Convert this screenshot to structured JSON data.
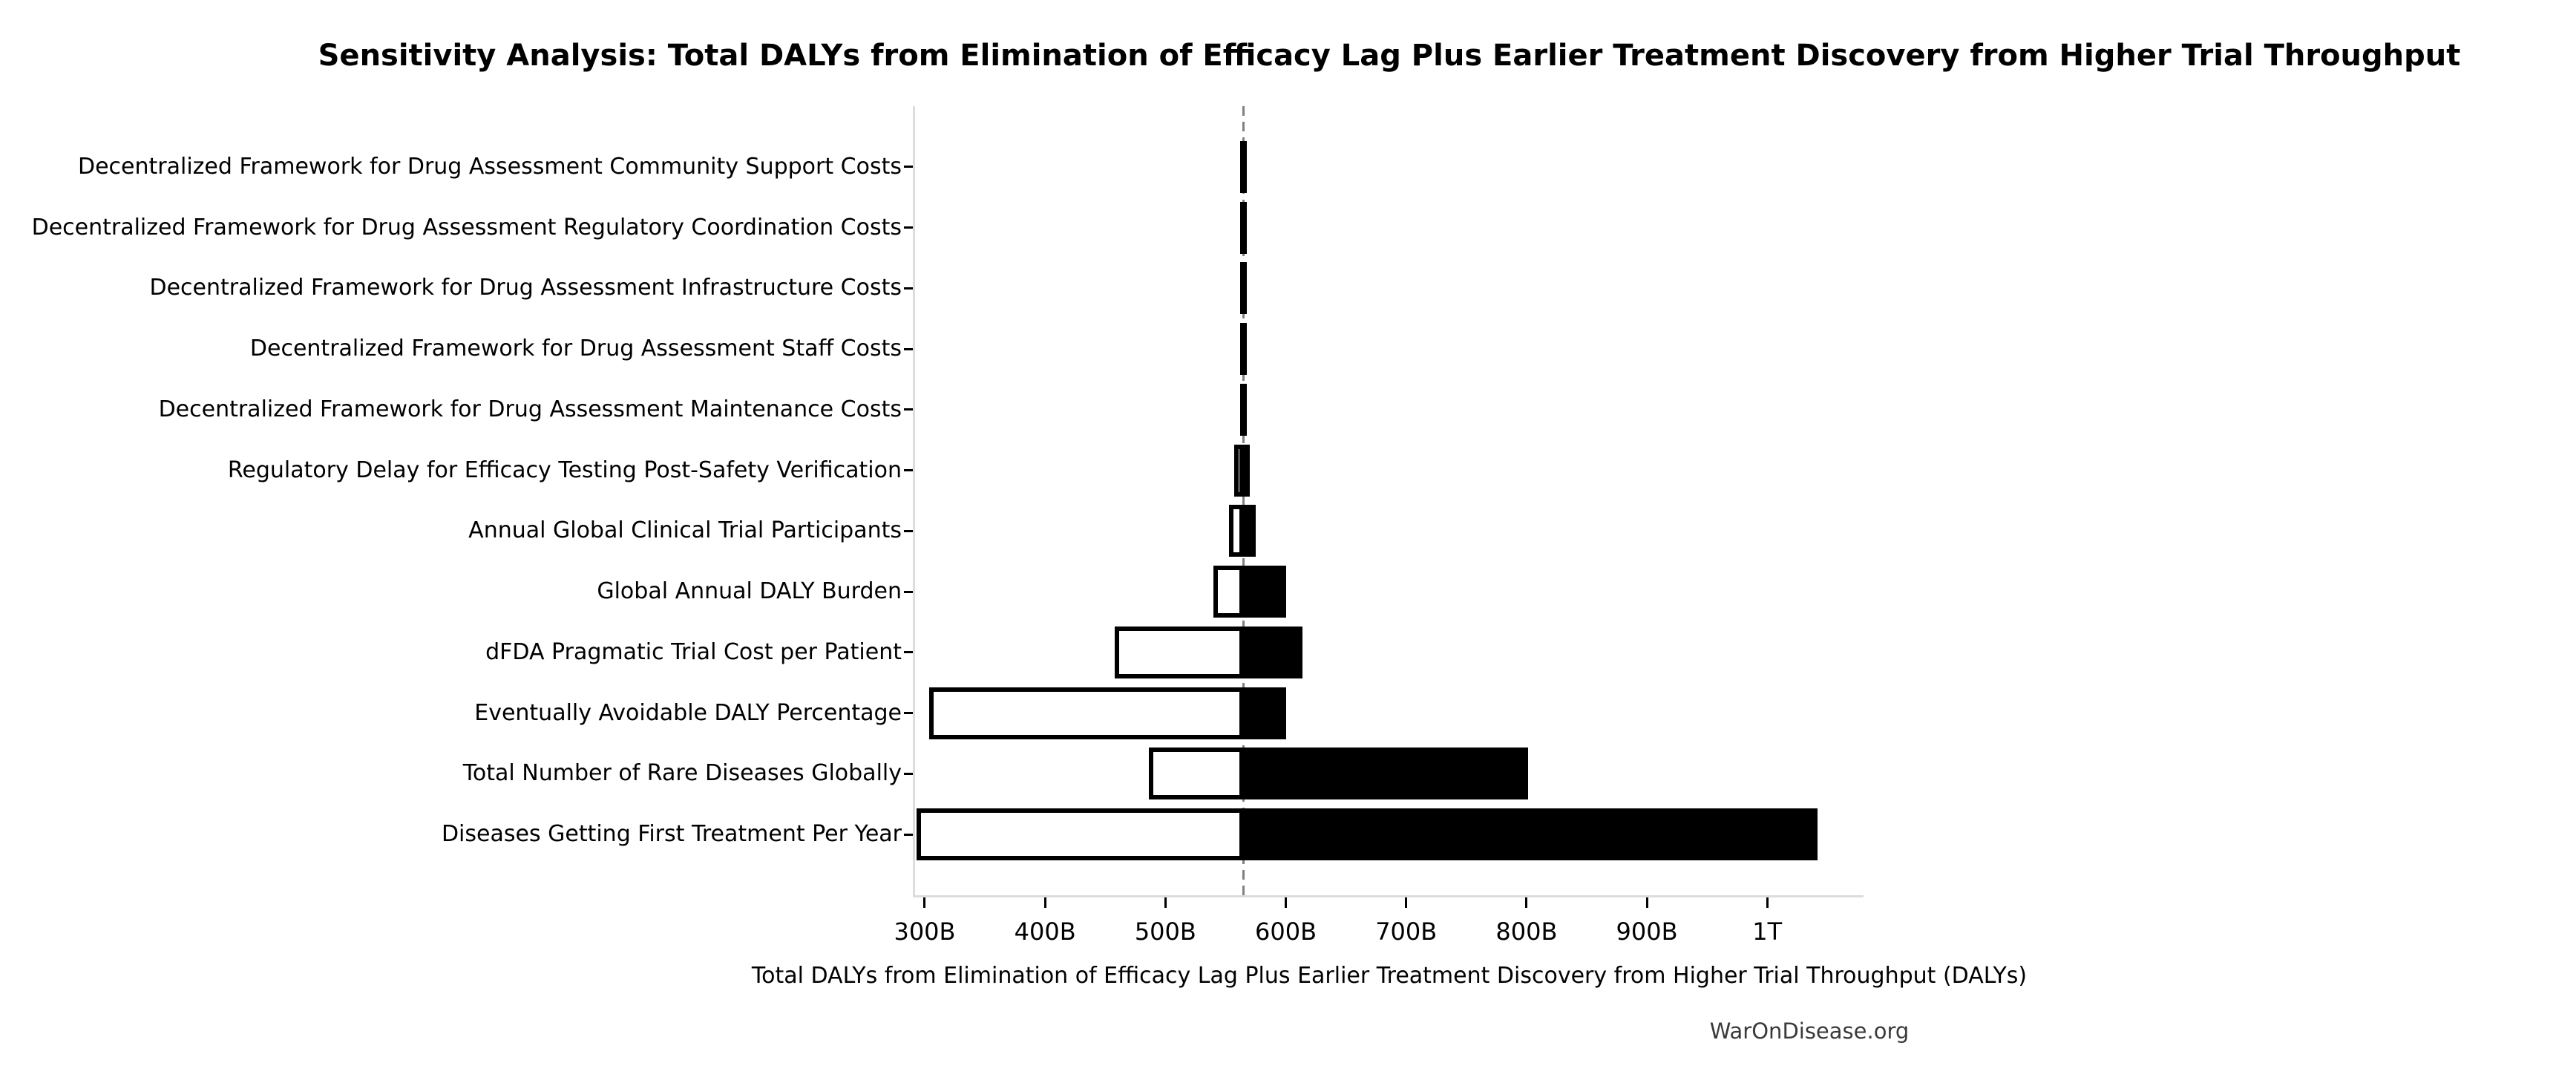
{
  "title": "Sensitivity Analysis: Total DALYs from Elimination of Efficacy Lag Plus Earlier Treatment Discovery from Higher Trial Throughput",
  "footer": "WarOnDisease.org",
  "chart_data": {
    "type": "bar",
    "variant": "tornado-sensitivity",
    "orientation": "horizontal",
    "title": "Sensitivity Analysis: Total DALYs from Elimination of Efficacy Lag Plus Earlier Treatment Discovery from Higher Trial Throughput",
    "xlabel": "Total DALYs from Elimination of Efficacy Lag Plus Earlier Treatment Discovery from Higher Trial Throughput (DALYs)",
    "value_unit": "DALYs (billions)",
    "xlim": [
      292,
      1080
    ],
    "baseline_value": 565,
    "grid": false,
    "legend": null,
    "xticks": [
      {
        "value": 300,
        "label": "300B"
      },
      {
        "value": 400,
        "label": "400B"
      },
      {
        "value": 500,
        "label": "500B"
      },
      {
        "value": 600,
        "label": "600B"
      },
      {
        "value": 700,
        "label": "700B"
      },
      {
        "value": 800,
        "label": "800B"
      },
      {
        "value": 900,
        "label": "900B"
      },
      {
        "value": 1000,
        "label": "1T"
      }
    ],
    "rows": [
      {
        "label": "Decentralized Framework for Drug Assessment Community Support Costs",
        "low": 564,
        "high": 566
      },
      {
        "label": "Decentralized Framework for Drug Assessment Regulatory Coordination Costs",
        "low": 564,
        "high": 566
      },
      {
        "label": "Decentralized Framework for Drug Assessment Infrastructure Costs",
        "low": 564,
        "high": 566
      },
      {
        "label": "Decentralized Framework for Drug Assessment Staff Costs",
        "low": 564,
        "high": 566
      },
      {
        "label": "Decentralized Framework for Drug Assessment Maintenance Costs",
        "low": 564,
        "high": 566
      },
      {
        "label": "Regulatory Delay for Efficacy Testing Post-Safety Verification",
        "low": 557,
        "high": 570
      },
      {
        "label": "Annual Global Clinical Trial Participants",
        "low": 553,
        "high": 575
      },
      {
        "label": "Global Annual DALY Burden",
        "low": 540,
        "high": 600
      },
      {
        "label": "dFDA Pragmatic Trial Cost per Patient",
        "low": 458,
        "high": 614
      },
      {
        "label": "Eventually Avoidable DALY Percentage",
        "low": 304,
        "high": 600
      },
      {
        "label": "Total Number of Rare Diseases Globally",
        "low": 486,
        "high": 801
      },
      {
        "label": "Diseases Getting First Treatment Per Year",
        "low": 293,
        "high": 1042
      }
    ],
    "colors": {
      "low_bar_fill": "#ffffff",
      "high_bar_fill": "#000000",
      "bar_edge": "#000000",
      "baseline_line": "#808080",
      "axis_spine": "#dcdcdc",
      "tick": "#000000",
      "text": "#000000",
      "footer_text": "#3a3a3a"
    }
  }
}
